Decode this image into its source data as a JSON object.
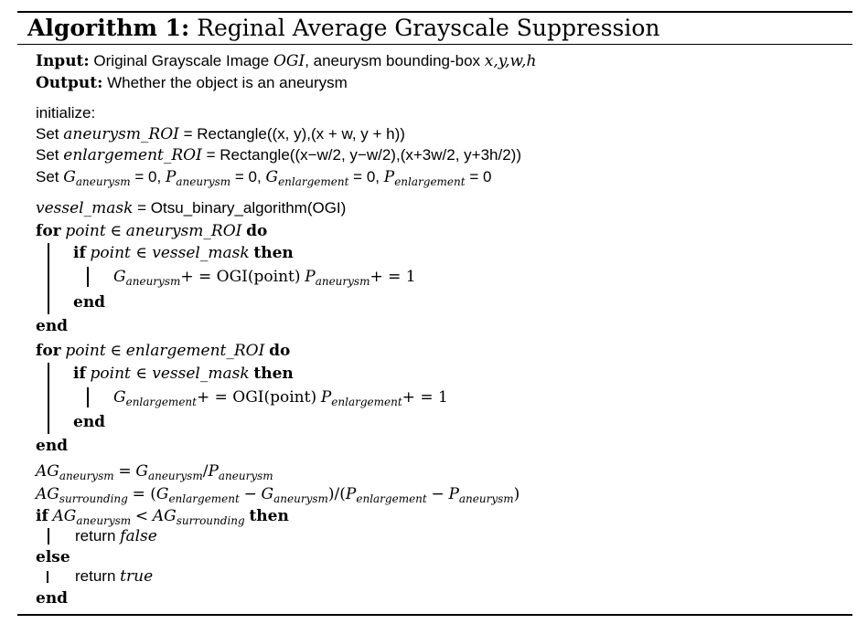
{
  "title": {
    "prefix": "Algorithm 1:",
    "name": "Reginal Average Grayscale Suppression"
  },
  "io": {
    "input_kw": "Input:",
    "input_text": "Original Grayscale Image",
    "input_ogi": "OGI",
    "input_text2": ", aneurysm bounding-box",
    "input_box": "x,y,w,h",
    "output_kw": "Output:",
    "output_text": "Whether the object is an aneurysm"
  },
  "init": {
    "label": "initialize:",
    "set1_kw": "Set",
    "set1_var": "aneurysm_ROI",
    "set1_rect": "= Rectangle((x, y),(x + w, y + h))",
    "set2_kw": "Set",
    "set2_var": "enlargement_ROI",
    "set2_rect": "= Rectangle((x−w/2, y−w/2),(x+3w/2, y+3h/2))",
    "set3_kw": "Set",
    "set3_vars": [
      {
        "base": "G",
        "sub": "aneurysm",
        "eq": "= 0,"
      },
      {
        "base": "P",
        "sub": "aneurysm",
        "eq": "= 0,"
      },
      {
        "base": "G",
        "sub": "enlargement",
        "eq": "= 0,"
      },
      {
        "base": "P",
        "sub": "enlargement",
        "eq": "= 0"
      }
    ]
  },
  "body": {
    "mask_var": "vessel_mask",
    "mask_assign": "= Otsu_binary_algorithm(OGI)",
    "loop1": {
      "for_kw": "for",
      "cond_var": "point",
      "cond_op": "∈",
      "cond_set": "aneurysm_ROI",
      "do_kw": "do",
      "if_kw": "if",
      "if_cond": "point ∈ vessel_mask",
      "then_kw": "then",
      "stmt_g": "G",
      "stmt_g_sub": "aneurysm",
      "stmt_mid": "+ = OGI(point)",
      "stmt_p": "P",
      "stmt_p_sub": "aneurysm",
      "stmt_end": "+ = 1",
      "end_if": "end",
      "end_for": "end"
    },
    "loop2": {
      "for_kw": "for",
      "cond_var": "point",
      "cond_op": "∈",
      "cond_set": "enlargement_ROI",
      "do_kw": "do",
      "if_kw": "if",
      "if_cond": "point ∈ vessel_mask",
      "then_kw": "then",
      "stmt_g": "G",
      "stmt_g_sub": "enlargement",
      "stmt_mid": "+ = OGI(point)",
      "stmt_p": "P",
      "stmt_p_sub": "enlargement",
      "stmt_end": "+ = 1",
      "end_if": "end",
      "end_for": "end"
    },
    "ag1": {
      "lhs": "AG",
      "lhs_sub": "aneurysm",
      "eq": "=",
      "g": "G",
      "g_sub": "aneurysm",
      "div": "/",
      "p": "P",
      "p_sub": "aneurysm"
    },
    "ag2": {
      "lhs": "AG",
      "lhs_sub": "surrounding",
      "eq": "= (",
      "g1": "G",
      "g1_sub": "enlargement",
      "minus1": "−",
      "g2": "G",
      "g2_sub": "aneurysm",
      "mid": ")/(",
      "p1": "P",
      "p1_sub": "enlargement",
      "minus2": "−",
      "p2": "P",
      "p2_sub": "aneurysm",
      "close": ")"
    },
    "cond": {
      "if_kw": "if",
      "a": "AG",
      "a_sub": "aneurysm",
      "op": "<",
      "b": "AG",
      "b_sub": "surrounding",
      "then_kw": "then",
      "ret1_kw": "return",
      "ret1_val": "false",
      "else_kw": "else",
      "ret2_kw": "return",
      "ret2_val": "true",
      "end_kw": "end"
    }
  }
}
